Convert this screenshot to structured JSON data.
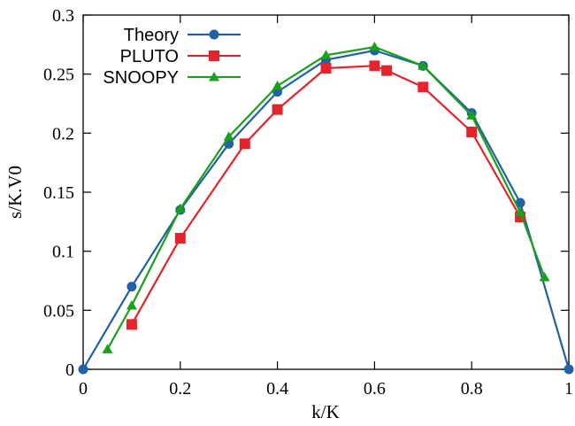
{
  "chart_data": {
    "type": "line",
    "xlabel": "k/K",
    "ylabel": "s/K.V0",
    "xlim": [
      0,
      1
    ],
    "ylim": [
      0,
      0.3
    ],
    "x_ticks": [
      0,
      0.2,
      0.4,
      0.6,
      0.8,
      1
    ],
    "x_tick_labels": [
      "0",
      "0.2",
      "0.4",
      "0.6",
      "0.8",
      "1"
    ],
    "y_ticks": [
      0,
      0.05,
      0.1,
      0.15,
      0.2,
      0.25,
      0.3
    ],
    "y_tick_labels": [
      "0",
      "0.05",
      "0.1",
      "0.15",
      "0.2",
      "0.25",
      "0.3"
    ],
    "grid": false,
    "legend_position": "top-left",
    "series": [
      {
        "name": "Theory",
        "color": "#1f62a6",
        "marker": "circle",
        "x": [
          0,
          0.1,
          0.2,
          0.3,
          0.4,
          0.5,
          0.6,
          0.7,
          0.8,
          0.9,
          1.0
        ],
        "y": [
          0,
          0.07,
          0.135,
          0.191,
          0.235,
          0.262,
          0.27,
          0.257,
          0.217,
          0.141,
          0
        ]
      },
      {
        "name": "PLUTO",
        "color": "#e5232d",
        "marker": "square",
        "x": [
          0.1,
          0.2,
          0.333,
          0.4,
          0.5,
          0.6,
          0.625,
          0.7,
          0.8,
          0.9
        ],
        "y": [
          0.038,
          0.111,
          0.191,
          0.22,
          0.255,
          0.257,
          0.253,
          0.239,
          0.201,
          0.129
        ]
      },
      {
        "name": "SNOOPY",
        "color": "#1aa01a",
        "marker": "triangle",
        "x": [
          0.05,
          0.1,
          0.2,
          0.3,
          0.4,
          0.5,
          0.6,
          0.7,
          0.8,
          0.9,
          0.95
        ],
        "y": [
          0.017,
          0.054,
          0.136,
          0.197,
          0.24,
          0.266,
          0.273,
          0.257,
          0.215,
          0.133,
          0.078
        ]
      }
    ]
  }
}
